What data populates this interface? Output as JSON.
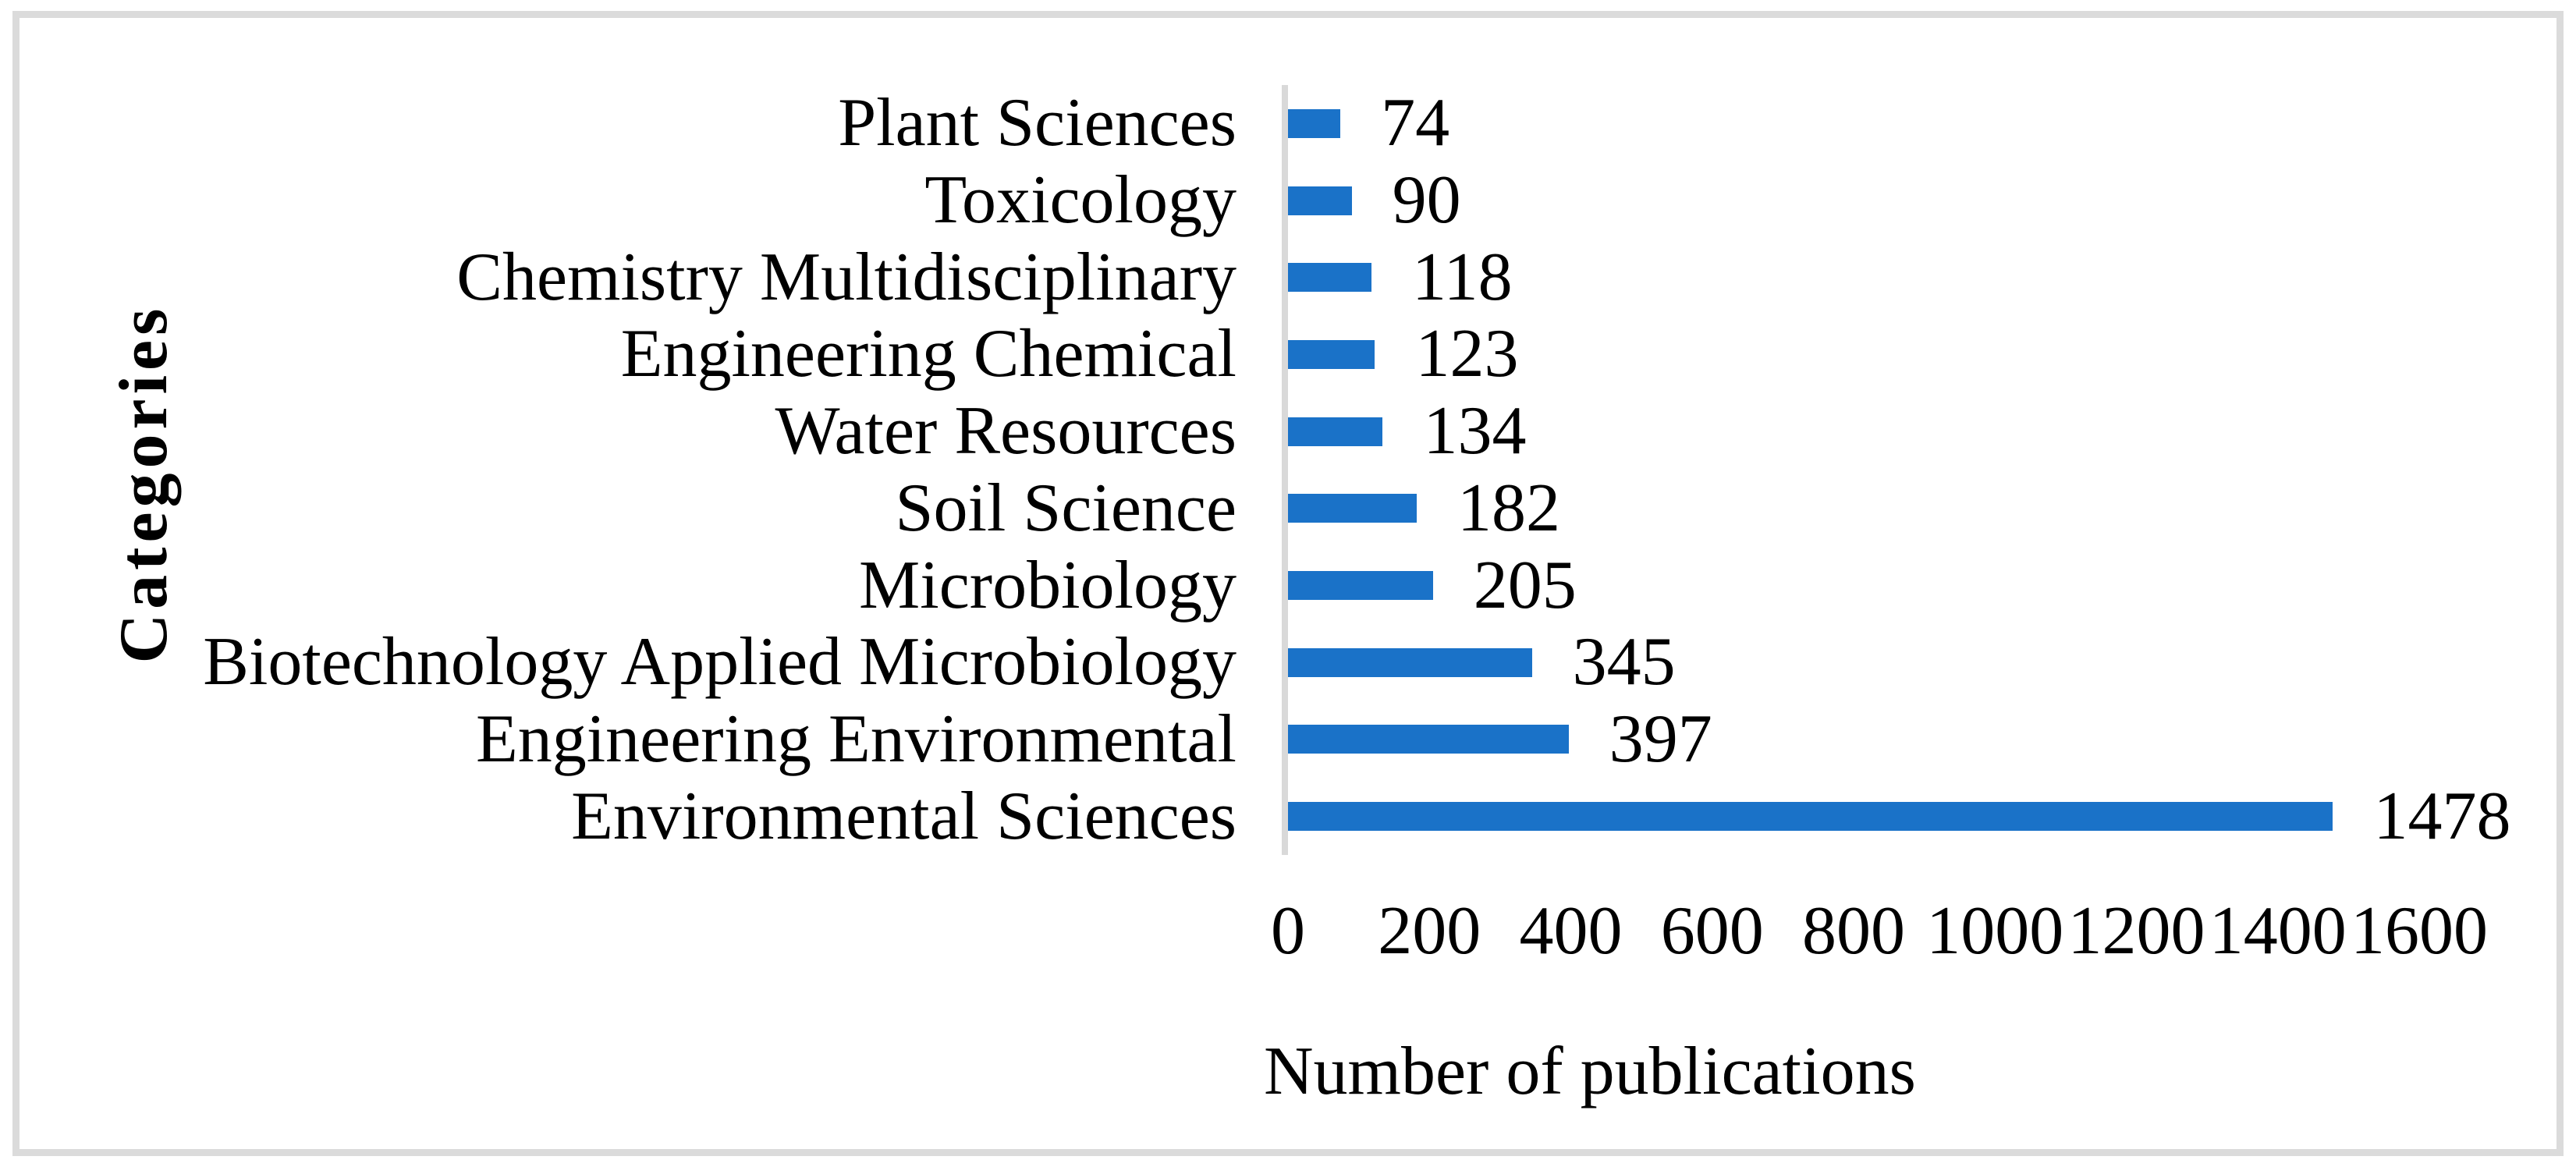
{
  "chart_data": {
    "type": "bar",
    "orientation": "horizontal",
    "title": "",
    "xlabel": "Number of publications",
    "ylabel": "Categories",
    "categories": [
      "Plant Sciences",
      "Toxicology",
      "Chemistry Multidisciplinary",
      "Engineering Chemical",
      "Water Resources",
      "Soil Science",
      "Microbiology",
      "Biotechnology Applied Microbiology",
      "Engineering Environmental",
      "Environmental Sciences"
    ],
    "values": [
      74,
      90,
      118,
      123,
      134,
      182,
      205,
      345,
      397,
      1478
    ],
    "value_labels_visible": true,
    "xlim": [
      0,
      1600
    ],
    "xticks": [
      0,
      200,
      400,
      600,
      800,
      1000,
      1200,
      1400,
      1600
    ],
    "grid": false,
    "legend": "none",
    "colors": {
      "bar": "#1a72c8",
      "axis_line": "#d9d9d9",
      "frame_border": "#dbdbdb",
      "text": "#000000"
    }
  }
}
